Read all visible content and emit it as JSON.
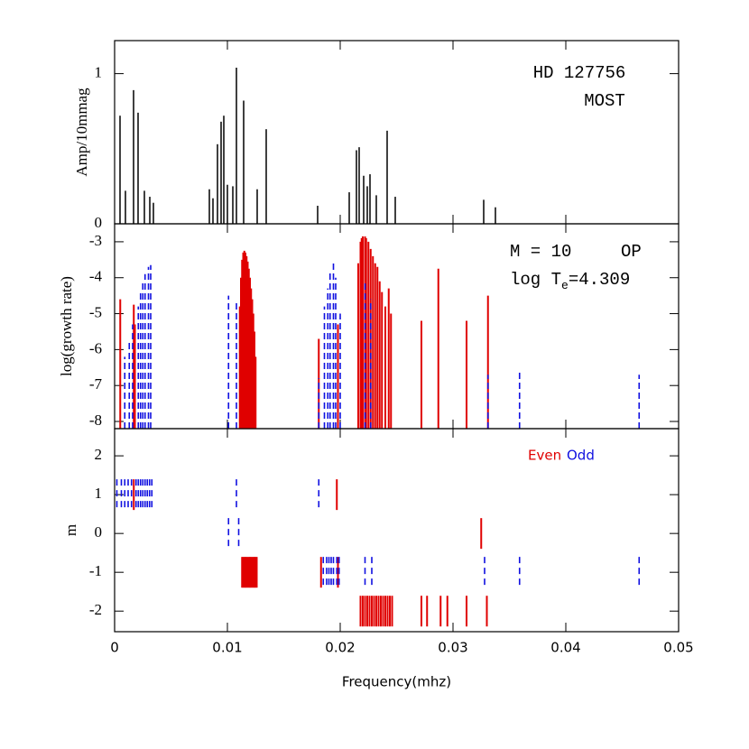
{
  "chart_data": [
    {
      "type": "stem",
      "ylabel": "Amp/10mmag",
      "annotations": [
        "HD 127756",
        "MOST"
      ],
      "xlim": [
        0,
        0.05
      ],
      "xticks": [
        0,
        0.01,
        0.02,
        0.03,
        0.04,
        0.05
      ],
      "ylim": [
        0,
        1.22
      ],
      "yticks": [
        0,
        1
      ],
      "series": [
        {
          "color": "#000000",
          "x": [
            0.00048,
            0.00096,
            0.00168,
            0.00208,
            0.00264,
            0.00312,
            0.00344,
            0.0084,
            0.00872,
            0.00912,
            0.00944,
            0.00968,
            0.01,
            0.01048,
            0.0108,
            0.01144,
            0.01264,
            0.01344,
            0.018,
            0.0208,
            0.02144,
            0.02168,
            0.02208,
            0.0224,
            0.02264,
            0.0232,
            0.02416,
            0.02488,
            0.03272,
            0.03376
          ],
          "values": [
            0.72,
            0.22,
            0.89,
            0.74,
            0.22,
            0.18,
            0.14,
            0.23,
            0.17,
            0.53,
            0.68,
            0.72,
            0.26,
            0.25,
            1.04,
            0.82,
            0.23,
            0.63,
            0.12,
            0.21,
            0.49,
            0.51,
            0.32,
            0.25,
            0.33,
            0.19,
            0.62,
            0.18,
            0.16,
            0.11
          ]
        }
      ]
    },
    {
      "type": "stem",
      "ylabel": "log(growth rate)",
      "annotations": [
        "M = 10",
        "OP",
        "log T",
        "e",
        "=4.309"
      ],
      "xlim": [
        0,
        0.05
      ],
      "xticks": [
        0,
        0.01,
        0.02,
        0.03,
        0.04,
        0.05
      ],
      "ylim": [
        -8.2,
        -2.5
      ],
      "yticks": [
        -8,
        -7,
        -6,
        -5,
        -4,
        -3
      ],
      "series": [
        {
          "color": "#e00000",
          "linestyle": "solid",
          "x": [
            0.0005,
            0.0017,
            0.0018,
            0.0111,
            0.0112,
            0.0113,
            0.0114,
            0.0115,
            0.0116,
            0.0117,
            0.0118,
            0.0119,
            0.012,
            0.0121,
            0.0122,
            0.0123,
            0.0124,
            0.0125,
            0.0181,
            0.0198,
            0.0216,
            0.0218,
            0.0219,
            0.022,
            0.0222,
            0.0223,
            0.0225,
            0.0227,
            0.0229,
            0.0231,
            0.0233,
            0.0235,
            0.0237,
            0.024,
            0.0243,
            0.0245,
            0.0272,
            0.0287,
            0.0312,
            0.0331
          ],
          "values": [
            -4.6,
            -4.75,
            -5.3,
            -4.8,
            -4.0,
            -3.5,
            -3.3,
            -3.25,
            -3.3,
            -3.4,
            -3.55,
            -3.75,
            -4.0,
            -4.3,
            -4.6,
            -5.0,
            -5.5,
            -6.2,
            -5.7,
            -5.3,
            -3.6,
            -3.0,
            -2.9,
            -2.85,
            -2.85,
            -2.9,
            -3.0,
            -3.2,
            -3.4,
            -3.6,
            -3.7,
            -4.1,
            -4.4,
            -4.8,
            -4.3,
            -5.0,
            -5.2,
            -3.75,
            -5.2,
            -4.5
          ]
        },
        {
          "color": "#1010e0",
          "linestyle": "dashed",
          "x": [
            0.0009,
            0.0013,
            0.0016,
            0.0021,
            0.0023,
            0.0025,
            0.0027,
            0.003,
            0.0032,
            0.0101,
            0.0108,
            0.0181,
            0.0186,
            0.0189,
            0.0191,
            0.0194,
            0.0196,
            0.02,
            0.0222,
            0.0227,
            0.0331,
            0.0359,
            0.0465
          ],
          "values": [
            -6.2,
            -5.8,
            -5.3,
            -4.8,
            -4.4,
            -4.1,
            -3.9,
            -3.7,
            -3.65,
            -4.5,
            -4.7,
            -6.8,
            -4.8,
            -4.3,
            -3.8,
            -3.6,
            -4.0,
            -5.0,
            -4.1,
            -4.6,
            -6.7,
            -6.6,
            -6.7
          ]
        }
      ]
    },
    {
      "type": "tick",
      "ylabel": "m",
      "xlabel": "Frequency(mhz)",
      "xlim": [
        0,
        0.05
      ],
      "xticks": [
        0,
        0.01,
        0.02,
        0.03,
        0.04,
        0.05
      ],
      "ylim": [
        -2.53,
        2.7
      ],
      "yticks": [
        -2,
        -1,
        0,
        1,
        2
      ],
      "series": [
        {
          "name": "Even",
          "color": "#e00000",
          "linestyle": "solid",
          "x": [
            0.0017,
            0.0197,
            0.0325,
            0.0113,
            0.0114,
            0.0115,
            0.0116,
            0.0117,
            0.0118,
            0.0119,
            0.012,
            0.0121,
            0.0122,
            0.0123,
            0.0124,
            0.0125,
            0.0126,
            0.0183,
            0.0198,
            0.0218,
            0.022,
            0.0222,
            0.0224,
            0.0226,
            0.0228,
            0.023,
            0.0232,
            0.0234,
            0.0236,
            0.0238,
            0.024,
            0.0242,
            0.0244,
            0.0246,
            0.0272,
            0.0277,
            0.0289,
            0.0295,
            0.0312,
            0.033
          ],
          "values": [
            1,
            1,
            0,
            -1,
            -1,
            -1,
            -1,
            -1,
            -1,
            -1,
            -1,
            -1,
            -1,
            -1,
            -1,
            -1,
            -1,
            -1,
            -1,
            -2,
            -2,
            -2,
            -2,
            -2,
            -2,
            -2,
            -2,
            -2,
            -2,
            -2,
            -2,
            -2,
            -2,
            -2,
            -2,
            -2,
            -2,
            -2,
            -2,
            -2
          ]
        },
        {
          "name": "Odd",
          "color": "#1010e0",
          "linestyle": "dashed",
          "x": [
            0.0002,
            0.0006,
            0.0009,
            0.0012,
            0.0015,
            0.0019,
            0.0021,
            0.0023,
            0.0025,
            0.0027,
            0.0029,
            0.0031,
            0.0033,
            0.0108,
            0.0181,
            0.0101,
            0.011,
            0.0185,
            0.0188,
            0.019,
            0.0192,
            0.0194,
            0.0197,
            0.0199,
            0.0222,
            0.0228,
            0.0328,
            0.0359,
            0.0465
          ],
          "values": [
            1,
            1,
            1,
            1,
            1,
            1,
            1,
            1,
            1,
            1,
            1,
            1,
            1,
            1,
            1,
            0,
            0,
            -1,
            -1,
            -1,
            -1,
            -1,
            -1,
            -1,
            -1,
            -1,
            -1,
            -1,
            -1
          ]
        }
      ]
    }
  ]
}
